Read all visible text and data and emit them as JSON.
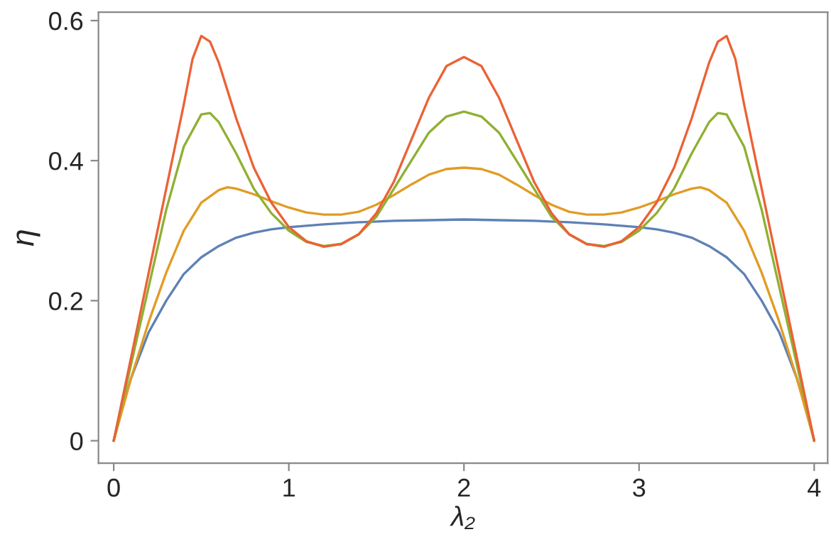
{
  "chart_data": {
    "type": "line",
    "xlabel": "λ₂",
    "ylabel": "η",
    "xlim": [
      -0.087,
      4.077
    ],
    "ylim": [
      -0.032,
      0.612
    ],
    "xticks": [
      0,
      1,
      2,
      3,
      4
    ],
    "yticks": [
      0,
      {
        "value": 0.2,
        "label": "0.2"
      },
      {
        "value": 0.4,
        "label": "0.4"
      },
      {
        "value": 0.6,
        "label": "0.6"
      }
    ],
    "grid": false,
    "marker": "none",
    "line_style": "solid",
    "series": [
      {
        "color": "#5e81b5",
        "x": [
          0,
          0.05,
          0.1,
          0.2,
          0.3,
          0.4,
          0.5,
          0.6,
          0.7,
          0.8,
          0.9,
          1.0,
          1.2,
          1.4,
          1.6,
          1.8,
          2.0,
          2.2,
          2.4,
          2.6,
          2.8,
          3.0,
          3.1,
          3.2,
          3.3,
          3.4,
          3.5,
          3.6,
          3.7,
          3.8,
          3.9,
          3.95,
          4.0
        ],
        "values": [
          0,
          0.05,
          0.09,
          0.155,
          0.2,
          0.238,
          0.262,
          0.278,
          0.29,
          0.297,
          0.302,
          0.305,
          0.309,
          0.312,
          0.314,
          0.315,
          0.316,
          0.315,
          0.314,
          0.312,
          0.309,
          0.305,
          0.302,
          0.297,
          0.29,
          0.278,
          0.262,
          0.238,
          0.2,
          0.155,
          0.09,
          0.05,
          0
        ]
      },
      {
        "color": "#e19c24",
        "x": [
          0,
          0.1,
          0.2,
          0.3,
          0.4,
          0.5,
          0.6,
          0.65,
          0.7,
          0.8,
          0.9,
          1.0,
          1.1,
          1.2,
          1.3,
          1.4,
          1.5,
          1.6,
          1.7,
          1.8,
          1.9,
          2.0,
          2.1,
          2.2,
          2.3,
          2.4,
          2.5,
          2.6,
          2.7,
          2.8,
          2.9,
          3.0,
          3.1,
          3.2,
          3.3,
          3.35,
          3.4,
          3.5,
          3.6,
          3.7,
          3.8,
          3.9,
          4.0
        ],
        "values": [
          0,
          0.09,
          0.17,
          0.24,
          0.3,
          0.34,
          0.358,
          0.362,
          0.36,
          0.352,
          0.342,
          0.333,
          0.326,
          0.323,
          0.323,
          0.327,
          0.337,
          0.351,
          0.366,
          0.38,
          0.388,
          0.39,
          0.388,
          0.38,
          0.366,
          0.351,
          0.337,
          0.327,
          0.323,
          0.323,
          0.326,
          0.333,
          0.342,
          0.352,
          0.36,
          0.362,
          0.358,
          0.34,
          0.3,
          0.24,
          0.17,
          0.09,
          0
        ]
      },
      {
        "color": "#8fb032",
        "x": [
          0,
          0.1,
          0.2,
          0.3,
          0.4,
          0.5,
          0.55,
          0.6,
          0.7,
          0.8,
          0.9,
          1.0,
          1.1,
          1.2,
          1.3,
          1.4,
          1.5,
          1.6,
          1.7,
          1.8,
          1.9,
          2.0,
          2.1,
          2.2,
          2.3,
          2.4,
          2.5,
          2.6,
          2.7,
          2.8,
          2.9,
          3.0,
          3.1,
          3.2,
          3.3,
          3.4,
          3.45,
          3.5,
          3.6,
          3.7,
          3.8,
          3.9,
          4.0
        ],
        "values": [
          0,
          0.11,
          0.22,
          0.33,
          0.42,
          0.466,
          0.468,
          0.455,
          0.41,
          0.36,
          0.325,
          0.3,
          0.284,
          0.278,
          0.281,
          0.295,
          0.32,
          0.36,
          0.4,
          0.44,
          0.463,
          0.47,
          0.463,
          0.44,
          0.4,
          0.36,
          0.32,
          0.295,
          0.281,
          0.278,
          0.284,
          0.3,
          0.325,
          0.36,
          0.41,
          0.455,
          0.468,
          0.466,
          0.42,
          0.33,
          0.22,
          0.11,
          0
        ]
      },
      {
        "color": "#eb6235",
        "x": [
          0,
          0.1,
          0.2,
          0.3,
          0.4,
          0.45,
          0.5,
          0.55,
          0.6,
          0.7,
          0.8,
          0.9,
          1.0,
          1.1,
          1.2,
          1.3,
          1.4,
          1.5,
          1.6,
          1.7,
          1.8,
          1.9,
          2.0,
          2.1,
          2.2,
          2.3,
          2.4,
          2.5,
          2.6,
          2.7,
          2.8,
          2.9,
          3.0,
          3.1,
          3.2,
          3.3,
          3.4,
          3.45,
          3.5,
          3.55,
          3.6,
          3.7,
          3.8,
          3.9,
          4.0
        ],
        "values": [
          0,
          0.12,
          0.24,
          0.36,
          0.48,
          0.545,
          0.578,
          0.57,
          0.54,
          0.46,
          0.39,
          0.34,
          0.305,
          0.285,
          0.277,
          0.281,
          0.295,
          0.325,
          0.37,
          0.43,
          0.49,
          0.535,
          0.548,
          0.535,
          0.49,
          0.43,
          0.37,
          0.325,
          0.295,
          0.281,
          0.277,
          0.285,
          0.305,
          0.34,
          0.39,
          0.46,
          0.54,
          0.57,
          0.578,
          0.545,
          0.48,
          0.36,
          0.24,
          0.12,
          0
        ]
      }
    ]
  }
}
